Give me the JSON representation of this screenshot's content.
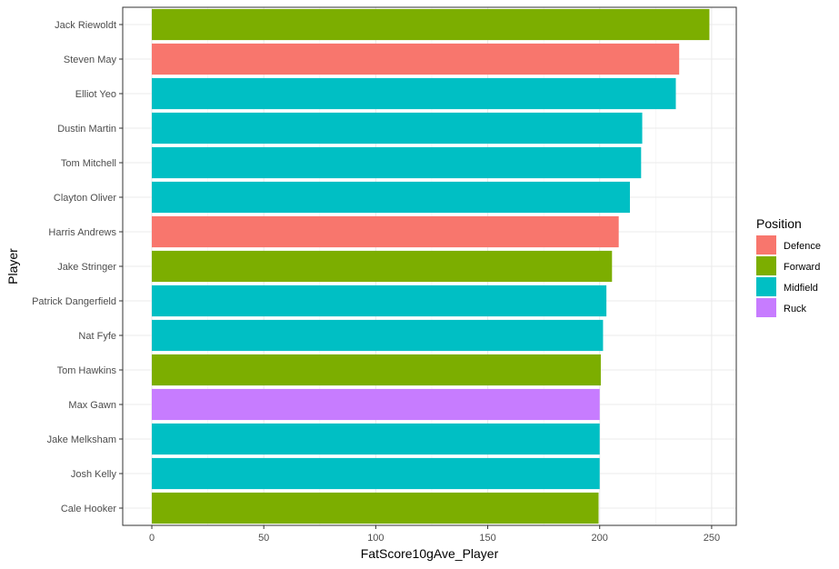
{
  "chart_data": {
    "type": "bar",
    "orientation": "horizontal",
    "xlabel": "FatScore10gAve_Player",
    "ylabel": "Player",
    "xlim": [
      -13,
      261
    ],
    "xticks": [
      0,
      50,
      100,
      150,
      200,
      250
    ],
    "grid": true,
    "legend": {
      "title": "Position",
      "placement": "right",
      "entries": [
        {
          "name": "Defence",
          "color": "#F8766D"
        },
        {
          "name": "Forward",
          "color": "#7CAE00"
        },
        {
          "name": "Midfield",
          "color": "#00BFC4"
        },
        {
          "name": "Ruck",
          "color": "#C77CFF"
        }
      ]
    },
    "categories": [
      "Jack Riewoldt",
      "Steven May",
      "Elliot Yeo",
      "Dustin Martin",
      "Tom Mitchell",
      "Clayton Oliver",
      "Harris Andrews",
      "Jake Stringer",
      "Patrick Dangerfield",
      "Nat Fyfe",
      "Tom Hawkins",
      "Max Gawn",
      "Jake Melksham",
      "Josh Kelly",
      "Cale Hooker"
    ],
    "values": [
      249,
      235.5,
      234,
      219,
      218.5,
      213.5,
      208.5,
      205.5,
      203,
      201.5,
      200.5,
      200,
      200,
      200,
      199.5
    ],
    "positions": [
      "Forward",
      "Defence",
      "Midfield",
      "Midfield",
      "Midfield",
      "Midfield",
      "Defence",
      "Forward",
      "Midfield",
      "Midfield",
      "Forward",
      "Ruck",
      "Midfield",
      "Midfield",
      "Forward"
    ]
  }
}
